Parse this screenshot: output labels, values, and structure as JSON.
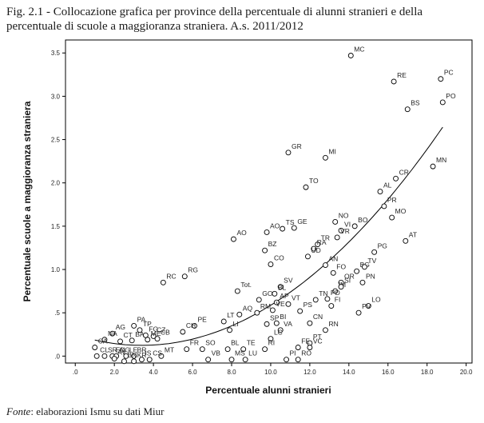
{
  "caption": {
    "fig_number": "Fig. 2.1 - ",
    "text": "Collocazione grafica per province della percentuale di alunni stranieri e della percentuale di scuole a maggioranza straniera. A.s. 2011/2012"
  },
  "source": {
    "label": "Fonte",
    "text": ": elaborazioni Ismu su dati Miur"
  },
  "chart_data": {
    "type": "scatter",
    "xlabel": "Percentuale alunni stranieri",
    "ylabel": "Percentuale scuole a maggioranza straniera",
    "xlim": [
      -0.5,
      20.3
    ],
    "ylim": [
      -0.08,
      3.65
    ],
    "x_ticks": [
      0,
      2,
      4,
      6,
      8,
      10,
      12,
      14,
      16,
      18,
      20
    ],
    "x_tick_labels": [
      ".0",
      "2.0",
      "4.0",
      "6.0",
      "8.0",
      "10.0",
      "12.0",
      "14.0",
      "16.0",
      "18.0",
      "20.0"
    ],
    "y_ticks": [
      0,
      0.5,
      1.0,
      1.5,
      2.0,
      2.5,
      3.0,
      3.5
    ],
    "y_tick_labels": [
      ".0",
      ".5",
      "1.0",
      "1.5",
      "2.0",
      "2.5",
      "3.0",
      "3.5"
    ],
    "grid": false,
    "fit_line": {
      "type": "quadratic",
      "color": "#000000"
    },
    "points": [
      {
        "x": 14.1,
        "y": 3.47,
        "label": "MC"
      },
      {
        "x": 16.3,
        "y": 3.17,
        "label": "RE"
      },
      {
        "x": 18.7,
        "y": 3.2,
        "label": "PC"
      },
      {
        "x": 17.0,
        "y": 2.85,
        "label": "BS"
      },
      {
        "x": 18.8,
        "y": 2.93,
        "label": "PO"
      },
      {
        "x": 10.9,
        "y": 2.35,
        "label": "GR"
      },
      {
        "x": 12.8,
        "y": 2.29,
        "label": "MI"
      },
      {
        "x": 18.3,
        "y": 2.19,
        "label": "MN"
      },
      {
        "x": 16.4,
        "y": 2.05,
        "label": "CR"
      },
      {
        "x": 11.8,
        "y": 1.95,
        "label": "TO"
      },
      {
        "x": 15.6,
        "y": 1.9,
        "label": "AL"
      },
      {
        "x": 15.8,
        "y": 1.73,
        "label": "PR"
      },
      {
        "x": 16.2,
        "y": 1.6,
        "label": "MO"
      },
      {
        "x": 13.3,
        "y": 1.55,
        "label": "NO"
      },
      {
        "x": 13.6,
        "y": 1.45,
        "label": "VI"
      },
      {
        "x": 14.3,
        "y": 1.5,
        "label": "BO"
      },
      {
        "x": 10.6,
        "y": 1.47,
        "label": "TS"
      },
      {
        "x": 11.2,
        "y": 1.48,
        "label": "GE"
      },
      {
        "x": 9.8,
        "y": 1.43,
        "label": "AO"
      },
      {
        "x": 8.1,
        "y": 1.35,
        "label": "AO"
      },
      {
        "x": 13.4,
        "y": 1.37,
        "label": "VR"
      },
      {
        "x": 12.4,
        "y": 1.29,
        "label": "TR"
      },
      {
        "x": 9.7,
        "y": 1.22,
        "label": "BZ"
      },
      {
        "x": 12.2,
        "y": 1.24,
        "label": "RA"
      },
      {
        "x": 15.3,
        "y": 1.2,
        "label": "PG"
      },
      {
        "x": 11.9,
        "y": 1.15,
        "label": "UD"
      },
      {
        "x": 10.0,
        "y": 1.06,
        "label": "CO"
      },
      {
        "x": 12.8,
        "y": 1.05,
        "label": "AN"
      },
      {
        "x": 14.4,
        "y": 0.98,
        "label": "BG"
      },
      {
        "x": 16.9,
        "y": 1.33,
        "label": "AT"
      },
      {
        "x": 14.8,
        "y": 1.03,
        "label": "TV"
      },
      {
        "x": 4.5,
        "y": 0.85,
        "label": "RC"
      },
      {
        "x": 5.6,
        "y": 0.92,
        "label": "RG"
      },
      {
        "x": 13.2,
        "y": 0.96,
        "label": "FO"
      },
      {
        "x": 10.5,
        "y": 0.8,
        "label": "SV"
      },
      {
        "x": 8.3,
        "y": 0.75,
        "label": "Tot."
      },
      {
        "x": 13.6,
        "y": 0.85,
        "label": "OR"
      },
      {
        "x": 14.7,
        "y": 0.85,
        "label": "PN"
      },
      {
        "x": 13.3,
        "y": 0.75,
        "label": "IM"
      },
      {
        "x": 13.6,
        "y": 0.8,
        "label": "SI"
      },
      {
        "x": 9.4,
        "y": 0.65,
        "label": "GO"
      },
      {
        "x": 10.2,
        "y": 0.72,
        "label": "BL"
      },
      {
        "x": 12.3,
        "y": 0.65,
        "label": "TN"
      },
      {
        "x": 12.9,
        "y": 0.66,
        "label": "PD"
      },
      {
        "x": 10.3,
        "y": 0.62,
        "label": "AP"
      },
      {
        "x": 10.9,
        "y": 0.6,
        "label": "VT"
      },
      {
        "x": 13.1,
        "y": 0.58,
        "label": "FI"
      },
      {
        "x": 15.0,
        "y": 0.58,
        "label": "LO"
      },
      {
        "x": 14.5,
        "y": 0.5,
        "label": "PV"
      },
      {
        "x": 8.4,
        "y": 0.48,
        "label": "AQ"
      },
      {
        "x": 9.3,
        "y": 0.5,
        "label": "RM"
      },
      {
        "x": 10.1,
        "y": 0.53,
        "label": "VE"
      },
      {
        "x": 11.5,
        "y": 0.52,
        "label": "PS"
      },
      {
        "x": 7.6,
        "y": 0.4,
        "label": "LT"
      },
      {
        "x": 6.1,
        "y": 0.35,
        "label": "PE"
      },
      {
        "x": 9.8,
        "y": 0.37,
        "label": "SP"
      },
      {
        "x": 10.3,
        "y": 0.38,
        "label": "BI"
      },
      {
        "x": 12.0,
        "y": 0.38,
        "label": "CN"
      },
      {
        "x": 5.5,
        "y": 0.28,
        "label": "CH"
      },
      {
        "x": 7.9,
        "y": 0.3,
        "label": "LI"
      },
      {
        "x": 10.5,
        "y": 0.3,
        "label": "VA"
      },
      {
        "x": 12.8,
        "y": 0.3,
        "label": "RN"
      },
      {
        "x": 3.0,
        "y": 0.35,
        "label": "PA"
      },
      {
        "x": 3.3,
        "y": 0.3,
        "label": "TP"
      },
      {
        "x": 1.9,
        "y": 0.26,
        "label": "AG"
      },
      {
        "x": 3.6,
        "y": 0.24,
        "label": "FG"
      },
      {
        "x": 4.0,
        "y": 0.23,
        "label": "CZ"
      },
      {
        "x": 1.5,
        "y": 0.19,
        "label": "NA"
      },
      {
        "x": 2.3,
        "y": 0.17,
        "label": "CT"
      },
      {
        "x": 2.9,
        "y": 0.18,
        "label": "BA"
      },
      {
        "x": 3.7,
        "y": 0.19,
        "label": "ME"
      },
      {
        "x": 4.2,
        "y": 0.2,
        "label": "CB"
      },
      {
        "x": 10.0,
        "y": 0.2,
        "label": "LC"
      },
      {
        "x": 12.0,
        "y": 0.15,
        "label": "PT"
      },
      {
        "x": 1.0,
        "y": 0.1,
        "label": "CA"
      },
      {
        "x": 5.7,
        "y": 0.08,
        "label": "FR"
      },
      {
        "x": 6.5,
        "y": 0.08,
        "label": "SO"
      },
      {
        "x": 7.8,
        "y": 0.08,
        "label": "BL"
      },
      {
        "x": 8.6,
        "y": 0.08,
        "label": "TE"
      },
      {
        "x": 9.7,
        "y": 0.08,
        "label": "RI"
      },
      {
        "x": 11.4,
        "y": 0.1,
        "label": "FE"
      },
      {
        "x": 12.0,
        "y": 0.1,
        "label": "VC"
      },
      {
        "x": 1.1,
        "y": 0.0,
        "label": "CL"
      },
      {
        "x": 1.5,
        "y": 0.0,
        "label": "SR"
      },
      {
        "x": 1.9,
        "y": 0.0,
        "label": "EN"
      },
      {
        "x": 2.1,
        "y": 0.0,
        "label": "OG"
      },
      {
        "x": 2.6,
        "y": 0.0,
        "label": "LE"
      },
      {
        "x": 3.0,
        "y": 0.0,
        "label": "BR"
      },
      {
        "x": 4.4,
        "y": 0.0,
        "label": "MT"
      },
      {
        "x": 2.0,
        "y": -0.03,
        "label": "AV"
      },
      {
        "x": 2.5,
        "y": -0.06,
        "label": "BN"
      },
      {
        "x": 3.0,
        "y": -0.06,
        "label": "KR"
      },
      {
        "x": 3.4,
        "y": -0.04,
        "label": "IS"
      },
      {
        "x": 3.8,
        "y": -0.04,
        "label": "CS"
      },
      {
        "x": 6.8,
        "y": -0.04,
        "label": "VB"
      },
      {
        "x": 8.0,
        "y": -0.04,
        "label": "MS"
      },
      {
        "x": 8.7,
        "y": -0.04,
        "label": "LU"
      },
      {
        "x": 10.8,
        "y": -0.04,
        "label": "PI"
      },
      {
        "x": 11.4,
        "y": -0.04,
        "label": "RO"
      }
    ]
  }
}
